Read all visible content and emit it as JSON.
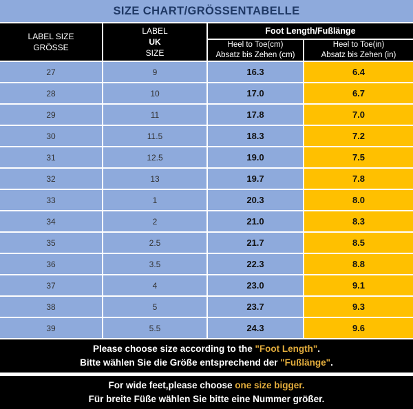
{
  "title": "SIZE CHART/GRÖSSENTABELLE",
  "colors": {
    "banner_bg": "#8EAADC",
    "banner_text": "#1F3864",
    "header_bg": "#000000",
    "header_text": "#FFFFFF",
    "row_bg": "#8EAADC",
    "inch_column_bg": "#FFC000",
    "cell_divider": "#FFFFFF",
    "note_bg": "#000000",
    "note_text": "#FFFFFF",
    "note_highlight": "#E2AC3C"
  },
  "table": {
    "label_size_header": [
      "LABEL SIZE",
      "GRÖSSE"
    ],
    "uk_header_segments": [
      {
        "text": "LABEL ",
        "bold": false
      },
      {
        "text": "UK",
        "bold": true
      },
      {
        "text": " SIZE",
        "bold": false
      }
    ],
    "foot_length_header": "Foot Length/Fußlänge",
    "cm_header": [
      "Heel to Toe(cm)",
      "Absatz bis Zehen (cm)"
    ],
    "in_header": [
      "Heel to Toe(in)",
      "Absatz bis Zehen (in)"
    ],
    "rows": [
      {
        "label": "27",
        "uk": "9",
        "cm": "16.3",
        "inch": "6.4"
      },
      {
        "label": "28",
        "uk": "10",
        "cm": "17.0",
        "inch": "6.7"
      },
      {
        "label": "29",
        "uk": "11",
        "cm": "17.8",
        "inch": "7.0"
      },
      {
        "label": "30",
        "uk": "11.5",
        "cm": "18.3",
        "inch": "7.2"
      },
      {
        "label": "31",
        "uk": "12.5",
        "cm": "19.0",
        "inch": "7.5"
      },
      {
        "label": "32",
        "uk": "13",
        "cm": "19.7",
        "inch": "7.8"
      },
      {
        "label": "33",
        "uk": "1",
        "cm": "20.3",
        "inch": "8.0"
      },
      {
        "label": "34",
        "uk": "2",
        "cm": "21.0",
        "inch": "8.3"
      },
      {
        "label": "35",
        "uk": "2.5",
        "cm": "21.7",
        "inch": "8.5"
      },
      {
        "label": "36",
        "uk": "3.5",
        "cm": "22.3",
        "inch": "8.8"
      },
      {
        "label": "37",
        "uk": "4",
        "cm": "23.0",
        "inch": "9.1"
      },
      {
        "label": "38",
        "uk": "5",
        "cm": "23.7",
        "inch": "9.3"
      },
      {
        "label": "39",
        "uk": "5.5",
        "cm": "24.3",
        "inch": "9.6"
      }
    ]
  },
  "notes": [
    {
      "lines": [
        [
          {
            "text": "Please choose size according to the ",
            "highlight": false
          },
          {
            "text": "\"Foot Length\"",
            "highlight": true
          },
          {
            "text": ".",
            "highlight": false
          }
        ],
        [
          {
            "text": "Bitte wählen Sie die Größe entsprechend der ",
            "highlight": false
          },
          {
            "text": "\"Fußlänge\"",
            "highlight": true
          },
          {
            "text": ".",
            "highlight": false
          }
        ]
      ]
    },
    {
      "lines": [
        [
          {
            "text": "For wide feet,please choose ",
            "highlight": false
          },
          {
            "text": "one size bigger.",
            "highlight": true
          }
        ],
        [
          {
            "text": "Für breite Füße wählen Sie bitte eine Nummer größer.",
            "highlight": false
          }
        ]
      ]
    }
  ],
  "chart_data": {
    "type": "table",
    "title": "SIZE CHART/GRÖSSENTABELLE",
    "column_group_header": "Foot Length/Fußlänge",
    "columns": [
      "LABEL SIZE GRÖSSE",
      "LABEL UK SIZE",
      "Heel to Toe(cm) Absatz bis Zehen (cm)",
      "Heel to Toe(in) Absatz bis Zehen (in)"
    ],
    "rows": [
      [
        27,
        "9",
        16.3,
        6.4
      ],
      [
        28,
        "10",
        17.0,
        6.7
      ],
      [
        29,
        "11",
        17.8,
        7.0
      ],
      [
        30,
        "11.5",
        18.3,
        7.2
      ],
      [
        31,
        "12.5",
        19.0,
        7.5
      ],
      [
        32,
        "13",
        19.7,
        7.8
      ],
      [
        33,
        "1",
        20.3,
        8.0
      ],
      [
        34,
        "2",
        21.0,
        8.3
      ],
      [
        35,
        "2.5",
        21.7,
        8.5
      ],
      [
        36,
        "3.5",
        22.3,
        8.8
      ],
      [
        37,
        "4",
        23.0,
        9.1
      ],
      [
        38,
        "5",
        23.7,
        9.3
      ],
      [
        39,
        "5.5",
        24.3,
        9.6
      ]
    ]
  }
}
